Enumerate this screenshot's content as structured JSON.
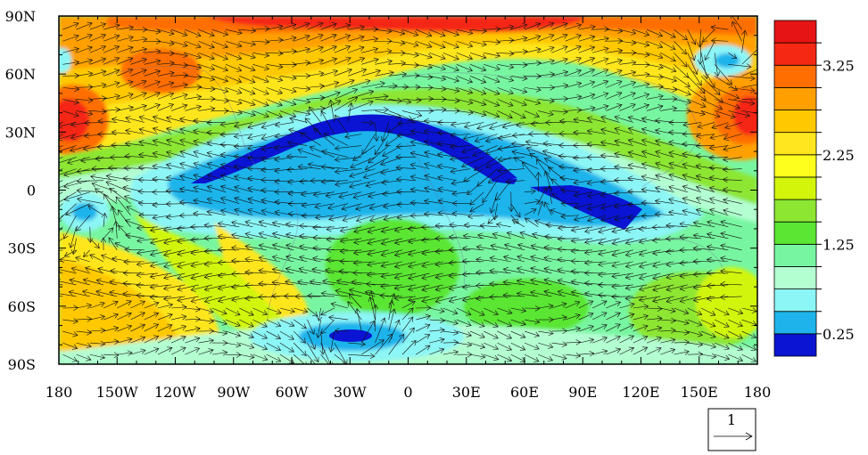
{
  "chart_data": {
    "type": "heatmap",
    "title": "",
    "xlabel": "",
    "ylabel": "",
    "x_tick_labels": [
      "180",
      "150W",
      "120W",
      "90W",
      "60W",
      "30W",
      "0",
      "30E",
      "60E",
      "90E",
      "120E",
      "150E",
      "180"
    ],
    "x_tick_values": [
      -180,
      -150,
      -120,
      -90,
      -60,
      -30,
      0,
      30,
      60,
      90,
      120,
      150,
      180
    ],
    "y_tick_labels": [
      "90N",
      "60N",
      "30N",
      "0",
      "30S",
      "60S",
      "90S"
    ],
    "y_tick_values": [
      90,
      60,
      30,
      0,
      -30,
      -60,
      -90
    ],
    "xlim": [
      -180,
      180
    ],
    "ylim": [
      -90,
      90
    ],
    "colorbar": {
      "levels": [
        0.25,
        0.5,
        0.75,
        1.0,
        1.25,
        1.5,
        1.75,
        2.0,
        2.25,
        2.5,
        2.75,
        3.0,
        3.25,
        3.5
      ],
      "labels": [
        "0.25",
        "1.25",
        "2.25",
        "3.25"
      ],
      "label_values": [
        0.25,
        1.25,
        2.25,
        3.25
      ],
      "colors": [
        "#0a14d2",
        "#1eb4eb",
        "#8cf5f5",
        "#b4ffd2",
        "#78f5a0",
        "#5ae632",
        "#8ce632",
        "#d2f50a",
        "#ffff1e",
        "#ffe61e",
        "#ffc800",
        "#ffa000",
        "#ff6e00",
        "#f52814",
        "#e61414"
      ]
    },
    "reference_vector": {
      "label": "1",
      "magnitude": 1
    }
  }
}
